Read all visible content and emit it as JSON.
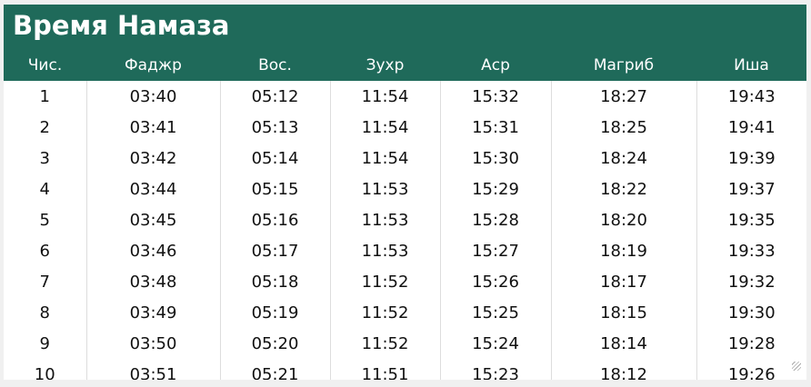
{
  "title": "Время Намаза",
  "columns": [
    "Чис.",
    "Фаджр",
    "Вос.",
    "Зухр",
    "Аср",
    "Магриб",
    "Иша"
  ],
  "rows": [
    [
      "1",
      "03:40",
      "05:12",
      "11:54",
      "15:32",
      "18:27",
      "19:43"
    ],
    [
      "2",
      "03:41",
      "05:13",
      "11:54",
      "15:31",
      "18:25",
      "19:41"
    ],
    [
      "3",
      "03:42",
      "05:14",
      "11:54",
      "15:30",
      "18:24",
      "19:39"
    ],
    [
      "4",
      "03:44",
      "05:15",
      "11:53",
      "15:29",
      "18:22",
      "19:37"
    ],
    [
      "5",
      "03:45",
      "05:16",
      "11:53",
      "15:28",
      "18:20",
      "19:35"
    ],
    [
      "6",
      "03:46",
      "05:17",
      "11:53",
      "15:27",
      "18:19",
      "19:33"
    ],
    [
      "7",
      "03:48",
      "05:18",
      "11:52",
      "15:26",
      "18:17",
      "19:32"
    ],
    [
      "8",
      "03:49",
      "05:19",
      "11:52",
      "15:25",
      "18:15",
      "19:30"
    ],
    [
      "9",
      "03:50",
      "05:20",
      "11:52",
      "15:24",
      "18:14",
      "19:28"
    ],
    [
      "10",
      "03:51",
      "05:21",
      "11:51",
      "15:23",
      "18:12",
      "19:26"
    ]
  ],
  "colors": {
    "header": "#1f6a5a"
  }
}
